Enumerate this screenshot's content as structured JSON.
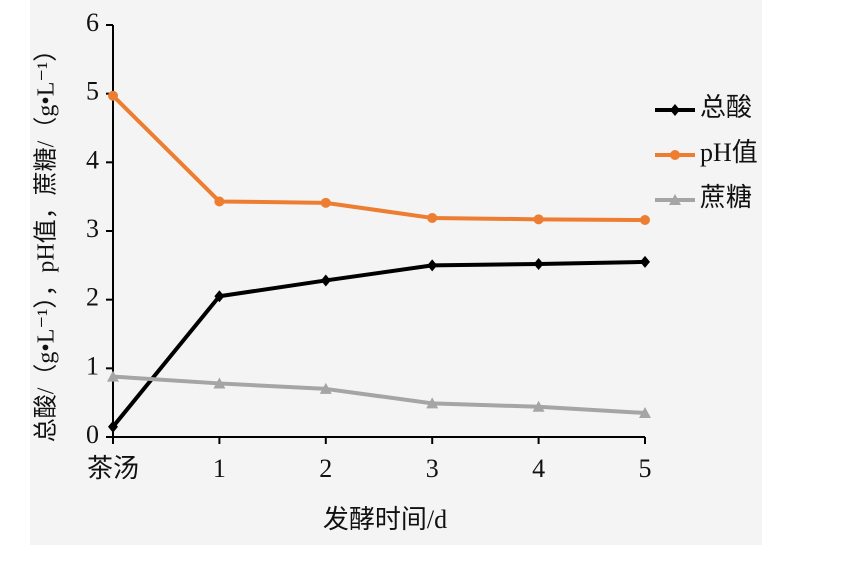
{
  "chart_data": {
    "type": "line",
    "y_label": "总酸/（g•L⁻¹），pH值，蔗糖/（g•L⁻¹）",
    "x_label": "发酵时间/d",
    "categories": [
      "茶汤",
      "1",
      "2",
      "3",
      "4",
      "5"
    ],
    "series": [
      {
        "name": "总酸",
        "color": "#000000",
        "marker": "diamond",
        "values": [
          0.15,
          2.05,
          2.28,
          2.5,
          2.52,
          2.55
        ]
      },
      {
        "name": "pH值",
        "color": "#ed7d31",
        "marker": "circle",
        "values": [
          4.97,
          3.43,
          3.41,
          3.19,
          3.17,
          3.16
        ]
      },
      {
        "name": "蔗糖",
        "color": "#a5a5a5",
        "marker": "triangle",
        "values": [
          0.88,
          0.78,
          0.7,
          0.49,
          0.44,
          0.35
        ]
      }
    ],
    "ylim": [
      0,
      6
    ],
    "yticks": [
      0,
      1,
      2,
      3,
      4,
      5,
      6
    ],
    "grid": false,
    "legend": "right"
  }
}
